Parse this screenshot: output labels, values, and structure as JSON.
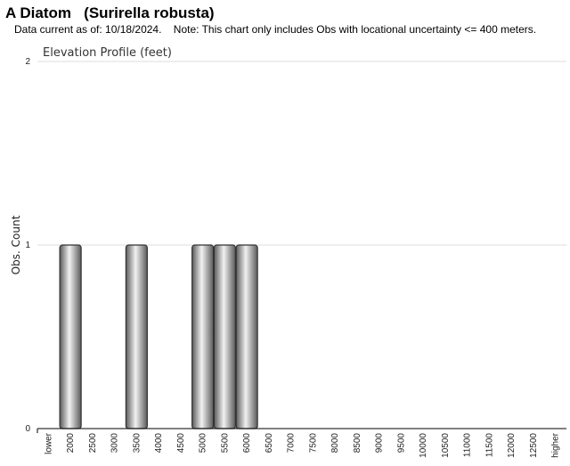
{
  "header": {
    "title": "A Diatom   (Surirella robusta)",
    "subtitle": "Data current as of: 10/18/2024.    Note: This chart only includes Obs with locational uncertainty <= 400 meters."
  },
  "chart_data": {
    "type": "bar",
    "title": "Elevation Profile (feet)",
    "xlabel": "",
    "ylabel": "Obs. Count",
    "ylim": [
      0,
      2
    ],
    "yticks": [
      "0",
      "1",
      "2"
    ],
    "grid": true,
    "categories": [
      "lower",
      "2000",
      "2500",
      "3000",
      "3500",
      "4000",
      "4500",
      "5000",
      "5500",
      "6000",
      "6500",
      "7000",
      "7500",
      "8000",
      "8500",
      "9000",
      "9500",
      "10000",
      "10500",
      "11000",
      "11500",
      "12000",
      "12500",
      "higher"
    ],
    "values": [
      0,
      1,
      0,
      0,
      1,
      0,
      0,
      1,
      1,
      1,
      0,
      0,
      0,
      0,
      0,
      0,
      0,
      0,
      0,
      0,
      0,
      0,
      0,
      0
    ],
    "colors": {
      "bar_dark": "#5a5a5a",
      "bar_light": "#f2f2f2",
      "bar_stroke": "#333333",
      "grid": "#dddddd",
      "axis": "#000000"
    }
  }
}
